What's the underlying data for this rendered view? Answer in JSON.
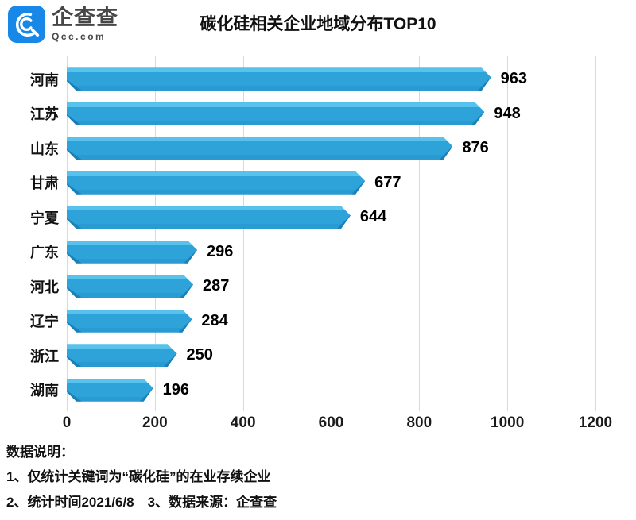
{
  "logo": {
    "name": "企查查",
    "domain": "Qcc.com",
    "color": "#1787e8"
  },
  "title": "碳化硅相关企业地域分布TOP10",
  "chart_data": {
    "type": "bar",
    "orientation": "horizontal",
    "title": "碳化硅相关企业地域分布TOP10",
    "categories": [
      "河南",
      "江苏",
      "山东",
      "甘肃",
      "宁夏",
      "广东",
      "河北",
      "辽宁",
      "浙江",
      "湖南"
    ],
    "values": [
      963,
      948,
      876,
      677,
      644,
      296,
      287,
      284,
      250,
      196
    ],
    "xlim": [
      0,
      1200
    ],
    "x_ticks": [
      0,
      200,
      400,
      600,
      800,
      1000,
      1200
    ],
    "grid": true,
    "legend": "none",
    "colors": {
      "bar_main": "#2ea3da",
      "bar_highlight": "#58c1ec",
      "bar_bottom": "#2a9bd2",
      "bar_shadow": "#1a80b5",
      "gridline": "#d9d9d9",
      "label_text": "#111111"
    }
  },
  "footnotes": {
    "heading": "数据说明：",
    "line1": "1、仅统计关键词为“碳化硅”的在业存续企业",
    "line2": "2、统计时间2021/6/8　3、数据来源：企查查"
  }
}
